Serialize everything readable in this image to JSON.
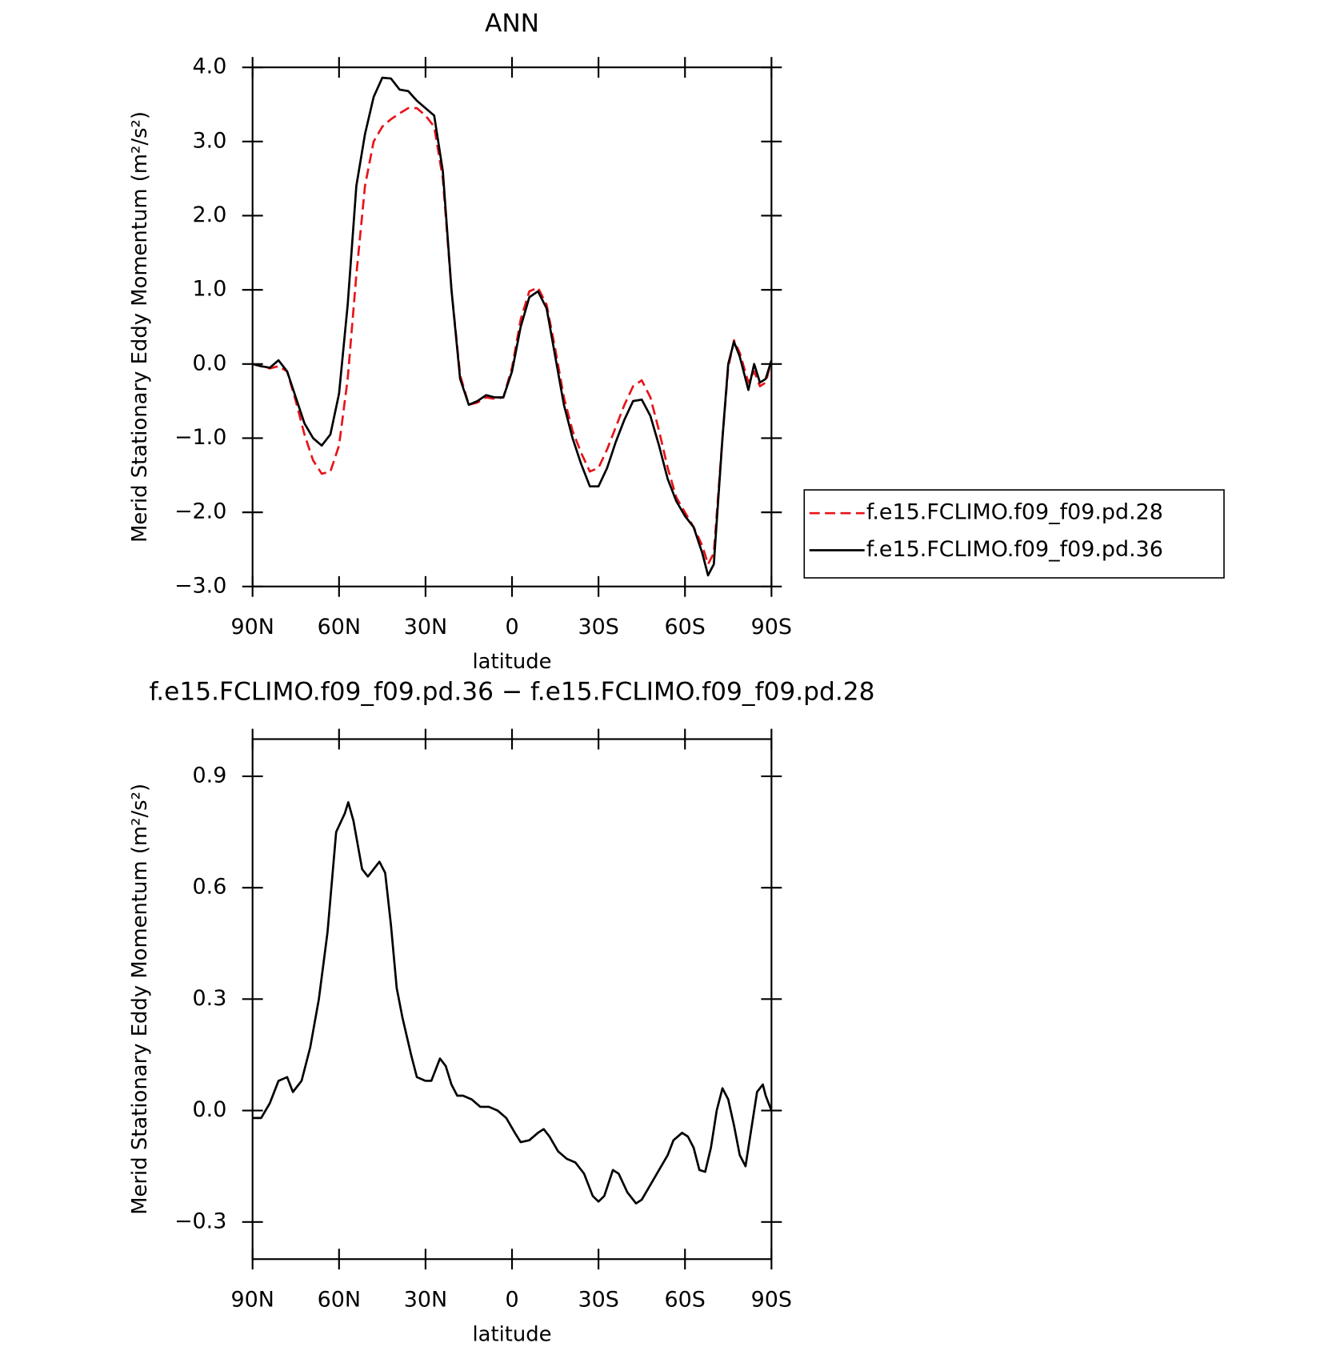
{
  "chart_data": [
    {
      "type": "line",
      "title": "ANN",
      "xlabel": "latitude",
      "ylabel": "Merid Stationary Eddy Momentum (m²/s²)",
      "x": [
        90,
        87,
        84,
        81,
        78,
        75,
        72,
        69,
        66,
        63,
        60,
        57,
        54,
        51,
        48,
        45,
        42,
        39,
        36,
        33,
        30,
        27,
        24,
        21,
        18,
        15,
        12,
        9,
        6,
        3,
        0,
        -3,
        -6,
        -9,
        -12,
        -15,
        -18,
        -21,
        -24,
        -27,
        -30,
        -33,
        -36,
        -39,
        -42,
        -45,
        -48,
        -51,
        -54,
        -57,
        -60,
        -63,
        -66,
        -68,
        -70,
        -73,
        -75,
        -77,
        -79,
        -82,
        -84,
        -86,
        -88,
        -90
      ],
      "series": [
        {
          "name": "f.e15.FCLIMO.f09_f09.pd.28",
          "color": "#e8141a",
          "dashed": true,
          "values": [
            0,
            -0.03,
            -0.06,
            -0.03,
            -0.1,
            -0.5,
            -0.95,
            -1.3,
            -1.48,
            -1.45,
            -1.1,
            -0.2,
            1.2,
            2.4,
            3.0,
            3.2,
            3.3,
            3.38,
            3.45,
            3.45,
            3.35,
            3.2,
            2.5,
            1.0,
            -0.15,
            -0.55,
            -0.52,
            -0.45,
            -0.47,
            -0.45,
            -0.05,
            0.6,
            0.98,
            1.03,
            0.8,
            0.2,
            -0.45,
            -0.9,
            -1.2,
            -1.45,
            -1.4,
            -1.15,
            -0.85,
            -0.55,
            -0.3,
            -0.22,
            -0.45,
            -0.9,
            -1.4,
            -1.8,
            -2.0,
            -2.2,
            -2.45,
            -2.7,
            -2.55,
            -1.0,
            -0.05,
            0.32,
            0.15,
            -0.25,
            -0.1,
            -0.3,
            -0.25,
            0.05
          ]
        },
        {
          "name": "f.e15.FCLIMO.f09_f09.pd.36",
          "color": "#000000",
          "dashed": false,
          "values": [
            0,
            -0.03,
            -0.05,
            0.05,
            -0.1,
            -0.45,
            -0.8,
            -1.0,
            -1.1,
            -0.95,
            -0.4,
            0.8,
            2.4,
            3.1,
            3.6,
            3.86,
            3.85,
            3.7,
            3.68,
            3.55,
            3.45,
            3.35,
            2.6,
            1.0,
            -0.2,
            -0.55,
            -0.5,
            -0.42,
            -0.45,
            -0.45,
            -0.1,
            0.5,
            0.9,
            0.98,
            0.75,
            0.1,
            -0.55,
            -1.0,
            -1.35,
            -1.65,
            -1.65,
            -1.4,
            -1.05,
            -0.75,
            -0.5,
            -0.48,
            -0.7,
            -1.1,
            -1.55,
            -1.85,
            -2.05,
            -2.2,
            -2.55,
            -2.85,
            -2.7,
            -1.0,
            0.0,
            0.3,
            0.1,
            -0.35,
            0.0,
            -0.25,
            -0.2,
            0.05
          ]
        }
      ],
      "xlim": [
        90,
        -90
      ],
      "xticks": [
        {
          "value": 90,
          "label": "90N"
        },
        {
          "value": 60,
          "label": "60N"
        },
        {
          "value": 30,
          "label": "30N"
        },
        0,
        {
          "value": -30,
          "label": "30S"
        },
        {
          "value": -60,
          "label": "60S"
        },
        {
          "value": -90,
          "label": "90S"
        }
      ],
      "ylim": [
        -3,
        4
      ],
      "yticks": [
        {
          "value": -3,
          "label": "−3.0"
        },
        {
          "value": -2,
          "label": "−2.0"
        },
        {
          "value": -1,
          "label": "−1.0"
        },
        {
          "value": 0,
          "label": "0.0"
        },
        {
          "value": 1,
          "label": "1.0"
        },
        {
          "value": 2,
          "label": "2.0"
        },
        {
          "value": 3,
          "label": "3.0"
        },
        {
          "value": 4,
          "label": "4.0"
        }
      ],
      "legend": "right"
    },
    {
      "type": "line",
      "title": "f.e15.FCLIMO.f09_f09.pd.36 − f.e15.FCLIMO.f09_f09.pd.28",
      "xlabel": "latitude",
      "ylabel": "Merid Stationary Eddy Momentum (m²/s²)",
      "x": [
        90,
        87,
        84,
        81,
        78,
        76,
        73,
        70,
        67,
        64,
        61,
        58,
        56.8,
        55,
        52,
        50,
        48,
        46,
        44,
        42,
        40,
        38,
        35,
        33,
        30,
        28,
        25,
        23,
        21,
        19,
        17,
        14,
        11,
        8,
        5,
        2,
        -1,
        -3,
        -6,
        -9,
        -11,
        -13,
        -16,
        -19,
        -22,
        -25,
        -28,
        -30,
        -32,
        -35,
        -37,
        -40,
        -43,
        -45,
        -48,
        -51,
        -54,
        -56,
        -59,
        -61,
        -63,
        -65,
        -67,
        -69,
        -71,
        -73,
        -75,
        -77,
        -79,
        -81,
        -83,
        -85,
        -87,
        -88,
        -90
      ],
      "series": [
        {
          "color": "#000000",
          "dashed": false,
          "values": [
            -0.02,
            -0.02,
            0.02,
            0.08,
            0.09,
            0.05,
            0.08,
            0.17,
            0.3,
            0.48,
            0.75,
            0.8,
            0.83,
            0.78,
            0.65,
            0.63,
            0.65,
            0.67,
            0.64,
            0.5,
            0.33,
            0.25,
            0.15,
            0.09,
            0.08,
            0.08,
            0.14,
            0.12,
            0.07,
            0.04,
            0.04,
            0.03,
            0.01,
            0.01,
            0.0,
            -0.02,
            -0.06,
            -0.085,
            -0.08,
            -0.06,
            -0.05,
            -0.07,
            -0.11,
            -0.13,
            -0.14,
            -0.17,
            -0.23,
            -0.245,
            -0.23,
            -0.16,
            -0.17,
            -0.22,
            -0.25,
            -0.24,
            -0.2,
            -0.16,
            -0.12,
            -0.08,
            -0.06,
            -0.07,
            -0.1,
            -0.16,
            -0.165,
            -0.1,
            0.0,
            0.06,
            0.03,
            -0.04,
            -0.12,
            -0.15,
            -0.05,
            0.05,
            0.07,
            0.04,
            0.0
          ]
        }
      ],
      "xlim": [
        90,
        -90
      ],
      "xticks": [
        {
          "value": 90,
          "label": "90N"
        },
        {
          "value": 60,
          "label": "60N"
        },
        {
          "value": 30,
          "label": "30N"
        },
        0,
        {
          "value": -30,
          "label": "30S"
        },
        {
          "value": -60,
          "label": "60S"
        },
        {
          "value": -90,
          "label": "90S"
        }
      ],
      "ylim": [
        -0.4,
        1.0
      ],
      "yticks": [
        {
          "value": -0.3,
          "label": "−0.3"
        },
        {
          "value": 0,
          "label": "0.0"
        },
        0.3,
        0.6,
        0.9
      ]
    }
  ]
}
